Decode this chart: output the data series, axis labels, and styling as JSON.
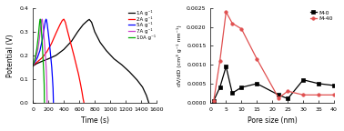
{
  "left_plot": {
    "xlabel": "Time (s)",
    "ylabel": "Potential (V)",
    "xlim": [
      0,
      1600
    ],
    "ylim": [
      0.0,
      0.4
    ],
    "xticks": [
      0,
      200,
      400,
      600,
      800,
      1000,
      1200,
      1400,
      1600
    ],
    "yticks": [
      0.0,
      0.1,
      0.2,
      0.3,
      0.4
    ],
    "curves": [
      {
        "label": "1A g⁻¹",
        "color": "black",
        "t": [
          0,
          50,
          120,
          200,
          300,
          400,
          500,
          580,
          650,
          700,
          720,
          730,
          760,
          800,
          870,
          950,
          1050,
          1150,
          1250,
          1350,
          1420,
          1470,
          1500
        ],
        "v": [
          0.155,
          0.165,
          0.175,
          0.185,
          0.2,
          0.225,
          0.26,
          0.3,
          0.33,
          0.345,
          0.35,
          0.352,
          0.34,
          0.3,
          0.255,
          0.22,
          0.185,
          0.16,
          0.13,
          0.095,
          0.065,
          0.03,
          0.0
        ]
      },
      {
        "label": "2A g⁻¹",
        "color": "red",
        "t": [
          0,
          20,
          60,
          120,
          180,
          240,
          300,
          350,
          380,
          395,
          400,
          420,
          450,
          490,
          530,
          560,
          590,
          615,
          635,
          650,
          660
        ],
        "v": [
          0.155,
          0.162,
          0.173,
          0.19,
          0.215,
          0.25,
          0.295,
          0.33,
          0.348,
          0.352,
          0.353,
          0.34,
          0.3,
          0.25,
          0.2,
          0.16,
          0.12,
          0.08,
          0.045,
          0.015,
          0.0
        ]
      },
      {
        "label": "5A g⁻¹",
        "color": "blue",
        "t": [
          0,
          10,
          30,
          60,
          90,
          120,
          145,
          160,
          168,
          170,
          175,
          185,
          200,
          215,
          230,
          243,
          252,
          260,
          265
        ],
        "v": [
          0.155,
          0.162,
          0.173,
          0.192,
          0.22,
          0.265,
          0.315,
          0.345,
          0.352,
          0.353,
          0.35,
          0.33,
          0.29,
          0.245,
          0.195,
          0.15,
          0.105,
          0.06,
          0.0
        ]
      },
      {
        "label": "7A g⁻¹",
        "color": "#cc44cc",
        "t": [
          0,
          8,
          20,
          40,
          65,
          85,
          100,
          110,
          115,
          118,
          122,
          130,
          142,
          154,
          164,
          172,
          178,
          183
        ],
        "v": [
          0.155,
          0.162,
          0.172,
          0.192,
          0.228,
          0.275,
          0.32,
          0.348,
          0.352,
          0.353,
          0.35,
          0.325,
          0.28,
          0.232,
          0.185,
          0.14,
          0.09,
          0.0
        ]
      },
      {
        "label": "10A g⁻¹",
        "color": "#00aa00",
        "t": [
          0,
          5,
          15,
          30,
          50,
          68,
          80,
          88,
          92,
          95,
          99,
          106,
          115,
          124,
          132,
          139,
          145,
          148
        ],
        "v": [
          0.155,
          0.162,
          0.172,
          0.192,
          0.228,
          0.278,
          0.32,
          0.345,
          0.352,
          0.353,
          0.35,
          0.32,
          0.275,
          0.225,
          0.175,
          0.13,
          0.075,
          0.0
        ]
      }
    ]
  },
  "right_plot": {
    "xlabel": "Pore size (nm)",
    "ylabel": "dV/dD (cm³ g⁻¹ nm⁻¹)",
    "xlim": [
      0,
      40
    ],
    "ylim": [
      0.0,
      0.0025
    ],
    "xticks": [
      0,
      5,
      10,
      15,
      20,
      25,
      30,
      35,
      40
    ],
    "yticks": [
      0.0,
      0.0005,
      0.001,
      0.0015,
      0.002,
      0.0025
    ],
    "series": [
      {
        "label": "M-0",
        "color": "black",
        "marker": "s",
        "x": [
          1,
          3,
          5,
          7,
          10,
          15,
          22,
          25,
          30,
          35,
          40
        ],
        "y": [
          5e-05,
          0.0004,
          0.00095,
          0.00025,
          0.0004,
          0.0005,
          0.0002,
          0.0001,
          0.0006,
          0.0005,
          0.00045
        ]
      },
      {
        "label": "M-40",
        "color": "#e05050",
        "marker": "o",
        "x": [
          1,
          3,
          5,
          7,
          10,
          15,
          22,
          25,
          30,
          35,
          40
        ],
        "y": [
          5e-05,
          0.0011,
          0.0024,
          0.0021,
          0.00195,
          0.00115,
          0.00012,
          0.0003,
          0.0002,
          0.0002,
          0.0002
        ]
      }
    ]
  }
}
